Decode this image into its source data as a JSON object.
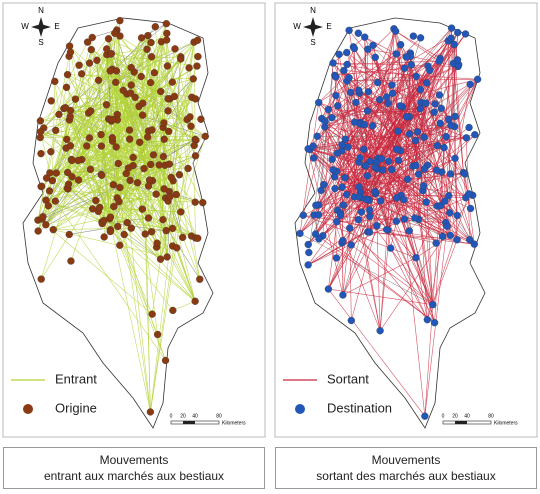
{
  "panels": [
    {
      "compass": {
        "n": "N",
        "w": "W",
        "e": "E",
        "s": "S"
      },
      "legend": [
        "Entrant",
        "Origine"
      ],
      "scale": {
        "ticks": [
          "0",
          "20",
          "40",
          "80"
        ],
        "unit": "Kilometers"
      },
      "caption": [
        "Mouvements",
        "entrant aux marchés aux bestiaux"
      ]
    },
    {
      "compass": {
        "n": "N",
        "w": "W",
        "e": "E",
        "s": "S"
      },
      "legend": [
        "Sortant",
        "Destination"
      ],
      "scale": {
        "ticks": [
          "0",
          "20",
          "40",
          "80"
        ],
        "unit": "Kilometers"
      },
      "caption": [
        "Mouvements",
        "sortant des marchés aux bestiaux"
      ]
    }
  ]
}
